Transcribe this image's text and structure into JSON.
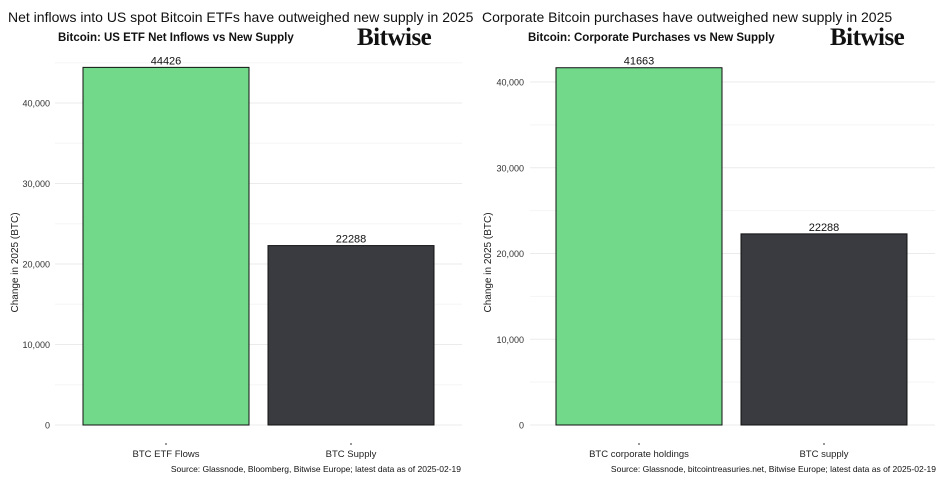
{
  "charts": [
    {
      "headline": "Net inflows into US spot Bitcoin ETFs have outweighed new supply in 2025",
      "logo": "Bitwise",
      "source": "Source: Glassnode, Bloomberg, Bitwise Europe; latest data as of 2025-02-19"
    },
    {
      "headline": "Corporate Bitcoin purchases have outweighed new supply in 2025",
      "logo": "Bitwise",
      "source": "Source: Glassnode, bitcointreasuries.net, Bitwise Europe; latest data as of 2025-02-19"
    }
  ],
  "chart_data": [
    {
      "type": "bar",
      "title": "Bitcoin: US ETF Net Inflows vs New Supply",
      "xlabel": "",
      "ylabel": "Change in 2025 (BTC)",
      "categories": [
        "BTC ETF Flows",
        "BTC Supply"
      ],
      "values": [
        44426,
        22288
      ],
      "colors": [
        "#72d98b",
        "#393b40"
      ],
      "yticks": [
        0,
        10000,
        20000,
        30000,
        40000
      ],
      "ytick_labels": [
        "0",
        "10,000",
        "20,000",
        "30,000",
        "40,000"
      ],
      "ylim": [
        0,
        46000
      ],
      "grid": true
    },
    {
      "type": "bar",
      "title": "Bitcoin: Corporate Purchases vs New Supply",
      "xlabel": "",
      "ylabel": "Change in 2025 (BTC)",
      "categories": [
        "BTC corporate holdings",
        "BTC supply"
      ],
      "values": [
        41663,
        22288
      ],
      "colors": [
        "#72d98b",
        "#393b40"
      ],
      "yticks": [
        0,
        10000,
        20000,
        30000,
        40000
      ],
      "ytick_labels": [
        "0",
        "10,000",
        "20,000",
        "30,000",
        "40,000"
      ],
      "ylim": [
        0,
        43000
      ],
      "grid": true
    }
  ]
}
